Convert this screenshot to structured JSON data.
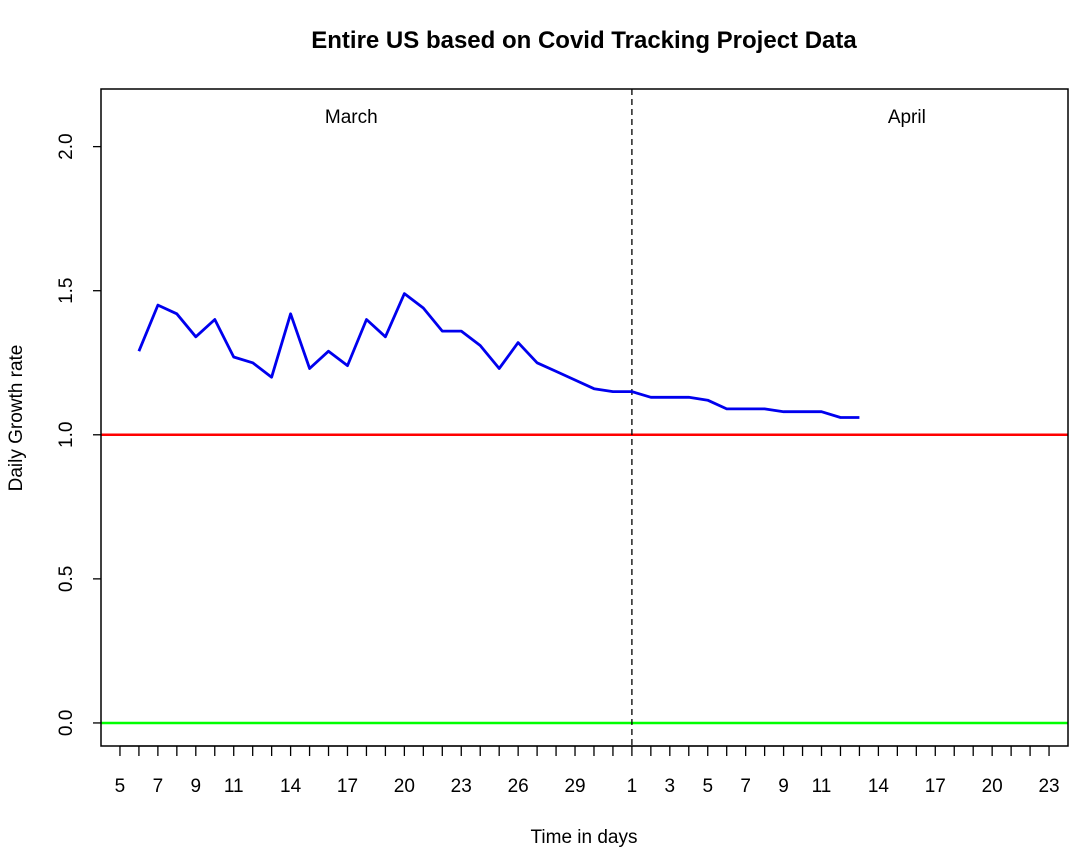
{
  "chart_data": {
    "type": "line",
    "title": "Entire US based on Covid Tracking Project Data",
    "xlabel": "Time in days",
    "ylabel": "Daily Growth rate",
    "xlim": [
      4,
      55
    ],
    "ylim": [
      -0.08,
      2.2
    ],
    "grid": false,
    "legend": "none",
    "y_ticks": [
      0.0,
      0.5,
      1.0,
      1.5,
      2.0
    ],
    "y_tick_labels": [
      "0.0",
      "0.5",
      "1.0",
      "1.5",
      "2.0"
    ],
    "x_tick_positions_start": 5,
    "x_tick_positions_end": 54,
    "x_labeled_ticks": [
      {
        "x": 5,
        "label": "5"
      },
      {
        "x": 7,
        "label": "7"
      },
      {
        "x": 9,
        "label": "9"
      },
      {
        "x": 11,
        "label": "11"
      },
      {
        "x": 14,
        "label": "14"
      },
      {
        "x": 17,
        "label": "17"
      },
      {
        "x": 20,
        "label": "20"
      },
      {
        "x": 23,
        "label": "23"
      },
      {
        "x": 26,
        "label": "26"
      },
      {
        "x": 29,
        "label": "29"
      },
      {
        "x": 32,
        "label": "1"
      },
      {
        "x": 34,
        "label": "3"
      },
      {
        "x": 36,
        "label": "5"
      },
      {
        "x": 38,
        "label": "7"
      },
      {
        "x": 40,
        "label": "9"
      },
      {
        "x": 42,
        "label": "11"
      },
      {
        "x": 45,
        "label": "14"
      },
      {
        "x": 48,
        "label": "17"
      },
      {
        "x": 51,
        "label": "20"
      },
      {
        "x": 54,
        "label": "23"
      }
    ],
    "month_labels": [
      {
        "x": 17.2,
        "label": "March"
      },
      {
        "x": 46.5,
        "label": "April"
      }
    ],
    "month_divider_x": 32,
    "reference_lines": [
      {
        "y": 1.0,
        "color": "#ff0000"
      },
      {
        "y": 0.0,
        "color": "#00ff00"
      }
    ],
    "series": [
      {
        "color": "#0000ee",
        "x": [
          6,
          7,
          8,
          9,
          10,
          11,
          12,
          13,
          14,
          15,
          16,
          17,
          18,
          19,
          20,
          21,
          22,
          23,
          24,
          25,
          26,
          27,
          28,
          29,
          30,
          31,
          32,
          33,
          34,
          35,
          36,
          37,
          38,
          39,
          40,
          41,
          42,
          43,
          44
        ],
        "y": [
          1.29,
          1.45,
          1.42,
          1.34,
          1.4,
          1.27,
          1.25,
          1.2,
          1.42,
          1.23,
          1.29,
          1.24,
          1.4,
          1.34,
          1.49,
          1.44,
          1.36,
          1.36,
          1.31,
          1.23,
          1.32,
          1.25,
          1.22,
          1.19,
          1.16,
          1.15,
          1.15,
          1.13,
          1.13,
          1.13,
          1.12,
          1.09,
          1.09,
          1.09,
          1.08,
          1.08,
          1.08,
          1.06,
          1.06
        ]
      }
    ]
  }
}
